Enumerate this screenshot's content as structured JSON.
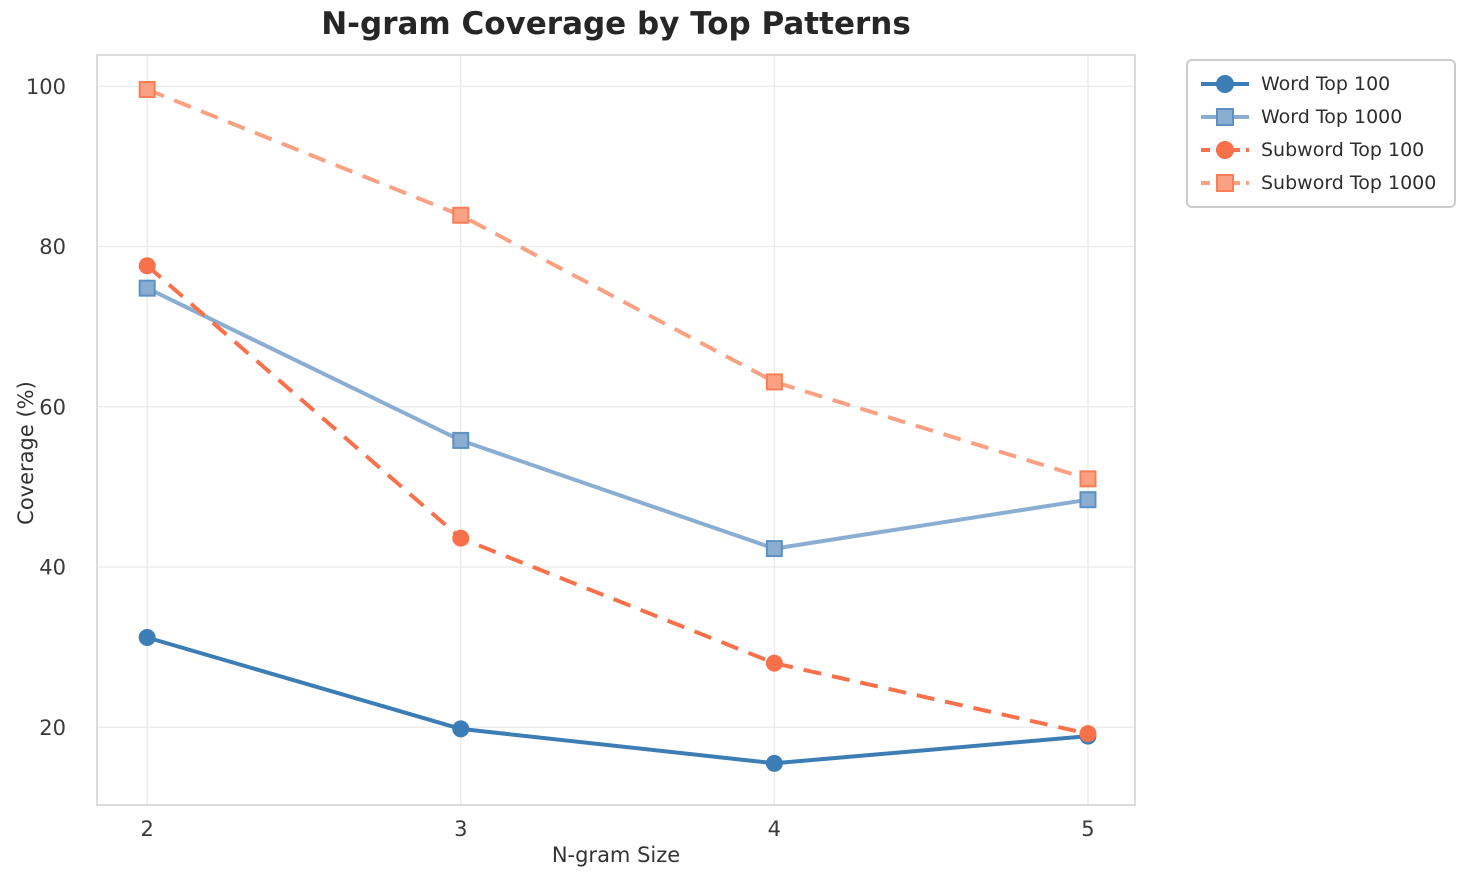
{
  "chart_data": {
    "type": "line",
    "title": "N-gram Coverage by Top Patterns",
    "xlabel": "N-gram Size",
    "ylabel": "Coverage (%)",
    "x": [
      2,
      3,
      4,
      5
    ],
    "xticks": [
      "2",
      "3",
      "4",
      "5"
    ],
    "yticks": [
      20,
      40,
      60,
      80,
      100
    ],
    "xlim": [
      1.84,
      5.15
    ],
    "ylim": [
      10.3,
      103.9
    ],
    "grid": true,
    "grid_color": "#eaeaea",
    "spine_color": "#d3d3d3",
    "tick_label_color": "#3a3a3a",
    "title_color": "#262626",
    "legend_position": "outside-right-top",
    "series": [
      {
        "name": "Word Top 100",
        "values": [
          31.2,
          19.8,
          15.5,
          18.9
        ],
        "color": "#3d7db5",
        "marker": "circle",
        "line_style": "solid"
      },
      {
        "name": "Word Top 1000",
        "values": [
          74.8,
          55.8,
          42.3,
          48.4
        ],
        "color": "#8aaed2",
        "marker": "square",
        "marker_edge": "#5e91c2",
        "line_style": "solid"
      },
      {
        "name": "Subword Top 100",
        "values": [
          77.6,
          43.6,
          28.0,
          19.2
        ],
        "color": "#f8714b",
        "marker": "circle",
        "line_style": "dashed"
      },
      {
        "name": "Subword Top 1000",
        "values": [
          99.6,
          83.9,
          63.1,
          51.0
        ],
        "color": "#fba183",
        "marker": "square",
        "marker_edge": "#f97d55",
        "line_style": "dashed"
      }
    ]
  }
}
